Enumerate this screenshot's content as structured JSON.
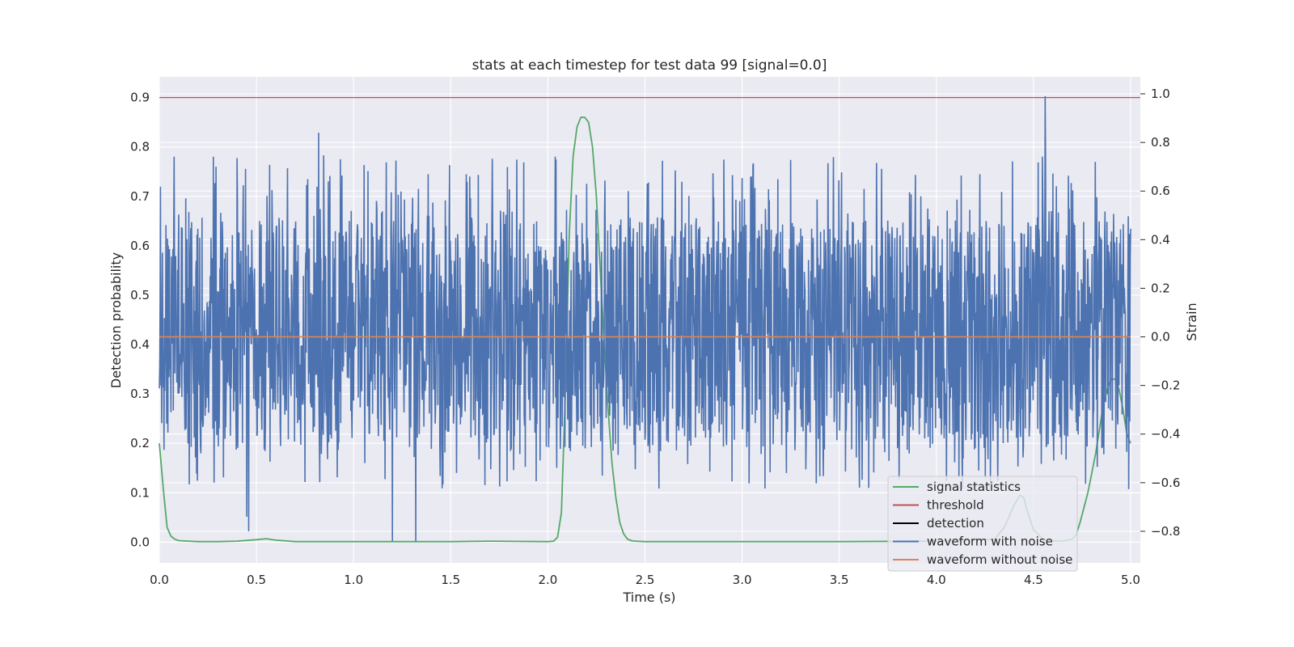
{
  "chart_data": {
    "type": "line",
    "title": "stats at each timestep for test data 99 [signal=0.0]",
    "xlabel": "Time (s)",
    "ylabel_left": "Detection probability",
    "ylabel_right": "Strain",
    "xlim": [
      0.0,
      5.05
    ],
    "ylim_left": [
      -0.042,
      0.942
    ],
    "ylim_right": [
      -0.93,
      1.07
    ],
    "x_ticks": [
      "0.0",
      "0.5",
      "1.0",
      "1.5",
      "2.0",
      "2.5",
      "3.0",
      "3.5",
      "4.0",
      "4.5",
      "5.0"
    ],
    "left_ticks": [
      "0.0",
      "0.1",
      "0.2",
      "0.3",
      "0.4",
      "0.5",
      "0.6",
      "0.7",
      "0.8",
      "0.9"
    ],
    "right_ticks": [
      "−0.8",
      "−0.6",
      "−0.4",
      "−0.2",
      "0.0",
      "0.2",
      "0.4",
      "0.6",
      "0.8",
      "1.0"
    ],
    "grid": true,
    "legend_position": "lower-right",
    "threshold": 0.9,
    "series": [
      {
        "name": "signal statistics",
        "axis": "left",
        "color": "#55a868",
        "x": [
          0.0,
          0.02,
          0.04,
          0.06,
          0.08,
          0.1,
          0.15,
          0.2,
          0.3,
          0.4,
          0.5,
          0.55,
          0.6,
          0.7,
          1.0,
          1.5,
          1.7,
          2.0,
          2.03,
          2.05,
          2.07,
          2.09,
          2.11,
          2.13,
          2.15,
          2.17,
          2.19,
          2.21,
          2.23,
          2.25,
          2.27,
          2.29,
          2.31,
          2.33,
          2.35,
          2.37,
          2.39,
          2.41,
          2.43,
          2.45,
          2.5,
          3.0,
          3.5,
          4.0,
          4.3,
          4.35,
          4.4,
          4.43,
          4.45,
          4.47,
          4.5,
          4.55,
          4.6,
          4.65,
          4.7,
          4.72,
          4.74,
          4.76,
          4.78,
          4.8,
          4.82,
          4.84,
          4.86,
          4.88,
          4.9,
          4.92,
          4.94,
          4.96,
          4.98,
          5.0
        ],
        "values": [
          0.2,
          0.11,
          0.03,
          0.012,
          0.006,
          0.003,
          0.002,
          0.001,
          0.001,
          0.002,
          0.005,
          0.007,
          0.004,
          0.001,
          0.001,
          0.001,
          0.002,
          0.001,
          0.002,
          0.01,
          0.06,
          0.3,
          0.62,
          0.78,
          0.84,
          0.86,
          0.86,
          0.85,
          0.8,
          0.7,
          0.55,
          0.4,
          0.27,
          0.16,
          0.09,
          0.04,
          0.017,
          0.006,
          0.003,
          0.002,
          0.001,
          0.001,
          0.001,
          0.002,
          0.006,
          0.03,
          0.075,
          0.095,
          0.09,
          0.06,
          0.025,
          0.006,
          0.003,
          0.002,
          0.006,
          0.015,
          0.04,
          0.07,
          0.1,
          0.14,
          0.18,
          0.23,
          0.28,
          0.31,
          0.33,
          0.33,
          0.31,
          0.27,
          0.22,
          0.2
        ]
      },
      {
        "name": "threshold",
        "axis": "left",
        "color": "#c44e52",
        "x": [
          0.0,
          5.05
        ],
        "values": [
          0.9,
          0.9
        ]
      },
      {
        "name": "detection",
        "axis": "left",
        "color": "#000000",
        "x": [],
        "values": []
      },
      {
        "name": "waveform with noise",
        "axis": "right",
        "color": "#4c72b0",
        "x_range": [
          0.0,
          5.0
        ],
        "envelope": {
          "typical_min": -0.45,
          "typical_max": 0.55,
          "min": -0.84,
          "max": 1.0
        },
        "peaks": [
          {
            "x": 0.45,
            "value": -0.74
          },
          {
            "x": 0.46,
            "value": -0.8
          },
          {
            "x": 0.82,
            "value": 0.84
          },
          {
            "x": 1.2,
            "value": -0.84
          },
          {
            "x": 1.32,
            "value": -0.84
          },
          {
            "x": 2.2,
            "value": 0.63
          },
          {
            "x": 3.47,
            "value": 0.74
          },
          {
            "x": 4.56,
            "value": 0.99
          }
        ]
      },
      {
        "name": "waveform without noise",
        "axis": "right",
        "color": "#dd8452",
        "x": [
          0.0,
          5.0
        ],
        "values": [
          0.0,
          0.0
        ]
      }
    ]
  }
}
